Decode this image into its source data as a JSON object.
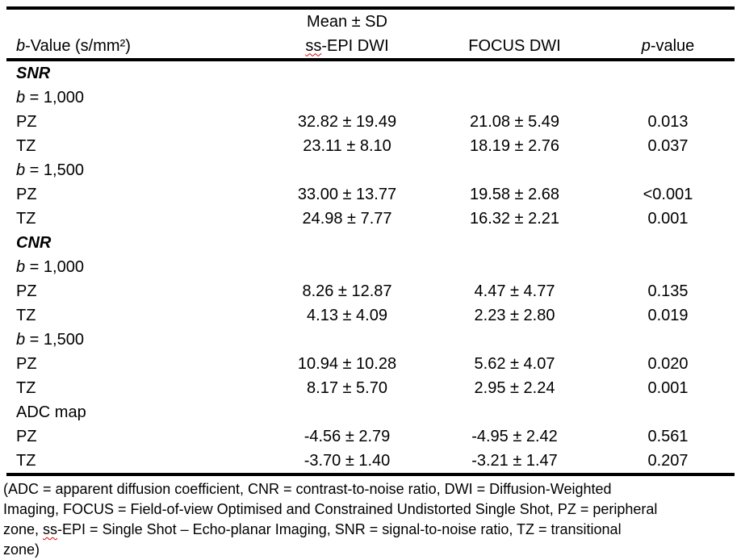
{
  "table": {
    "header": {
      "mean_sd": "Mean ± SD",
      "col1_italic": "b",
      "col1_rest": "-Value (s/mm²)",
      "col2_wavy": "ss",
      "col2_rest": "-EPI DWI",
      "col3": "FOCUS DWI",
      "col4_italic": "p",
      "col4_rest": "-value"
    },
    "rows": [
      {
        "label": "SNR",
        "style": "section",
        "ssepi": "",
        "focus": "",
        "p": ""
      },
      {
        "label": "b = 1,000",
        "style": "bvalue",
        "ssepi": "",
        "focus": "",
        "p": ""
      },
      {
        "label": "PZ",
        "style": "plain",
        "ssepi": "32.82 ± 19.49",
        "focus": "21.08 ± 5.49",
        "p": "0.013"
      },
      {
        "label": "TZ",
        "style": "plain",
        "ssepi": "23.11 ± 8.10",
        "focus": "18.19 ± 2.76",
        "p": "0.037"
      },
      {
        "label": "b = 1,500",
        "style": "bvalue",
        "ssepi": "",
        "focus": "",
        "p": ""
      },
      {
        "label": "PZ",
        "style": "plain",
        "ssepi": "33.00 ± 13.77",
        "focus": "19.58 ± 2.68",
        "p": "<0.001"
      },
      {
        "label": "TZ",
        "style": "plain",
        "ssepi": "24.98 ± 7.77",
        "focus": "16.32 ± 2.21",
        "p": "0.001"
      },
      {
        "label": "CNR",
        "style": "section",
        "ssepi": "",
        "focus": "",
        "p": ""
      },
      {
        "label": "b = 1,000",
        "style": "bvalue",
        "ssepi": "",
        "focus": "",
        "p": ""
      },
      {
        "label": "PZ",
        "style": "plain",
        "ssepi": "8.26 ± 12.87",
        "focus": "4.47 ± 4.77",
        "p": "0.135"
      },
      {
        "label": "TZ",
        "style": "plain",
        "ssepi": "4.13 ± 4.09",
        "focus": "2.23 ± 2.80",
        "p": "0.019"
      },
      {
        "label": "b = 1,500",
        "style": "bvalue",
        "ssepi": "",
        "focus": "",
        "p": ""
      },
      {
        "label": "PZ",
        "style": "plain",
        "ssepi": "10.94 ± 10.28",
        "focus": "5.62 ± 4.07",
        "p": "0.020"
      },
      {
        "label": "TZ",
        "style": "plain",
        "ssepi": "8.17 ± 5.70",
        "focus": "2.95 ± 2.24",
        "p": "0.001"
      },
      {
        "label": "ADC map",
        "style": "plain",
        "ssepi": "",
        "focus": "",
        "p": ""
      },
      {
        "label": "PZ",
        "style": "plain",
        "ssepi": "-4.56 ± 2.79",
        "focus": "-4.95 ± 2.42",
        "p": "0.561"
      },
      {
        "label": "TZ",
        "style": "plain",
        "ssepi": "-3.70 ± 1.40",
        "focus": "-3.21 ± 1.47",
        "p": "0.207"
      }
    ]
  },
  "footnote": {
    "lines": [
      {
        "pre": "(ADC = apparent diffusion coefficient, CNR = contrast-to-noise ratio, DWI = Diffusion-Weighted"
      },
      {
        "pre": "Imaging, FOCUS = Field-of-view Optimised and Constrained Undistorted Single Shot, PZ = peripheral"
      },
      {
        "pre": "zone, ",
        "wavy": "ss",
        "post": "-EPI = Single Shot – Echo-planar Imaging, SNR = signal-to-noise ratio, TZ = transitional"
      },
      {
        "pre": "zone)"
      }
    ]
  },
  "colors": {
    "text": "#000000",
    "background": "#ffffff",
    "rule": "#000000",
    "squiggle": "#e00000"
  }
}
